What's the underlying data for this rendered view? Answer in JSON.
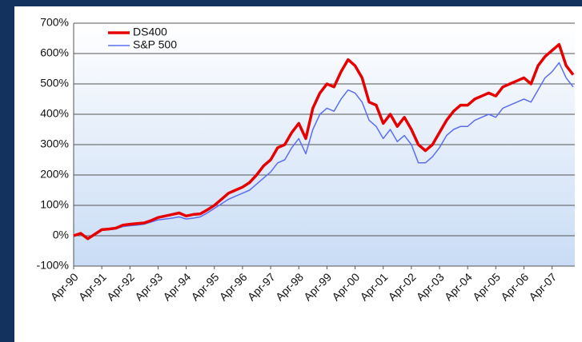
{
  "chart_data": {
    "type": "line",
    "categories": [
      "Apr-90",
      null,
      null,
      null,
      "Apr-91",
      null,
      null,
      null,
      "Apr-92",
      null,
      null,
      null,
      "Apr-93",
      null,
      null,
      null,
      "Apr-94",
      null,
      null,
      null,
      "Apr-95",
      null,
      null,
      null,
      "Apr-96",
      null,
      null,
      null,
      "Apr-97",
      null,
      null,
      null,
      "Apr-98",
      null,
      null,
      null,
      "Apr-99",
      null,
      null,
      null,
      "Apr-00",
      null,
      null,
      null,
      "Apr-01",
      null,
      null,
      null,
      "Apr-02",
      null,
      null,
      null,
      "Apr-03",
      null,
      null,
      null,
      "Apr-04",
      null,
      null,
      null,
      "Apr-05",
      null,
      null,
      null,
      "Apr-06",
      null,
      null,
      null,
      "Apr-07",
      null,
      null,
      null
    ],
    "series": [
      {
        "name": "DS400",
        "color": "#e60000",
        "values": [
          0,
          8,
          -10,
          5,
          20,
          22,
          25,
          35,
          38,
          40,
          42,
          50,
          60,
          65,
          70,
          75,
          65,
          70,
          72,
          85,
          100,
          120,
          140,
          150,
          160,
          175,
          200,
          230,
          250,
          290,
          300,
          340,
          370,
          320,
          420,
          470,
          500,
          490,
          540,
          580,
          560,
          520,
          440,
          430,
          370,
          400,
          360,
          390,
          350,
          300,
          280,
          300,
          340,
          380,
          410,
          430,
          430,
          450,
          460,
          470,
          460,
          490,
          500,
          510,
          520,
          500,
          560,
          590,
          610,
          630,
          560,
          530
        ]
      },
      {
        "name": "S&P 500",
        "color": "#5b6ef2",
        "values": [
          0,
          6,
          -10,
          3,
          18,
          20,
          22,
          30,
          33,
          35,
          38,
          45,
          52,
          55,
          58,
          62,
          55,
          58,
          62,
          75,
          90,
          105,
          120,
          130,
          140,
          150,
          170,
          190,
          210,
          240,
          250,
          290,
          320,
          270,
          350,
          400,
          420,
          410,
          450,
          480,
          470,
          440,
          380,
          360,
          320,
          350,
          310,
          330,
          300,
          240,
          240,
          260,
          290,
          330,
          350,
          360,
          360,
          380,
          390,
          400,
          390,
          420,
          430,
          440,
          450,
          440,
          480,
          520,
          540,
          570,
          520,
          490
        ]
      }
    ],
    "ylim": [
      -100,
      700
    ],
    "yticks": [
      {
        "value": -100,
        "label": "-100%"
      },
      {
        "value": 0,
        "label": "0%"
      },
      {
        "value": 100,
        "label": "100%"
      },
      {
        "value": 200,
        "label": "200%"
      },
      {
        "value": 300,
        "label": "300%"
      },
      {
        "value": 400,
        "label": "400%"
      },
      {
        "value": 500,
        "label": "500%"
      },
      {
        "value": 600,
        "label": "600%"
      },
      {
        "value": 700,
        "label": "700%"
      }
    ],
    "grid": true,
    "legend": "upper left"
  }
}
